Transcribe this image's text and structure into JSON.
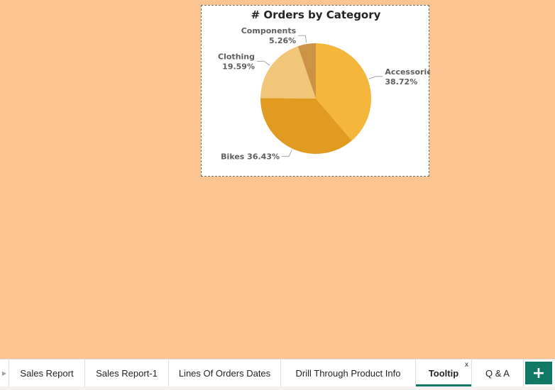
{
  "chart_data": {
    "type": "pie",
    "title": "# Orders by Category",
    "slices": [
      {
        "name": "Accessories",
        "label": "38.72%",
        "value": 38.72,
        "color": "#f4b63b"
      },
      {
        "name": "Bikes",
        "label": "36.43%",
        "value": 36.43,
        "color": "#e19b21"
      },
      {
        "name": "Clothing",
        "label": "19.59%",
        "value": 19.59,
        "color": "#f2c679"
      },
      {
        "name": "Components",
        "label": "5.26%",
        "value": 5.26,
        "color": "#cc9346"
      }
    ],
    "start_angle_deg": 0,
    "direction": "clockwise"
  },
  "tabs": [
    {
      "label": "Sales Report",
      "active": false
    },
    {
      "label": "Sales Report-1",
      "active": false
    },
    {
      "label": "Lines Of Orders Dates",
      "active": false
    },
    {
      "label": "Drill Through Product Info",
      "active": false
    },
    {
      "label": "Tooltip",
      "active": true,
      "close": "x"
    },
    {
      "label": "Q & A",
      "active": false
    }
  ],
  "add_tab_label": "+",
  "colors": {
    "background": "#fac590",
    "accent": "#117865"
  }
}
